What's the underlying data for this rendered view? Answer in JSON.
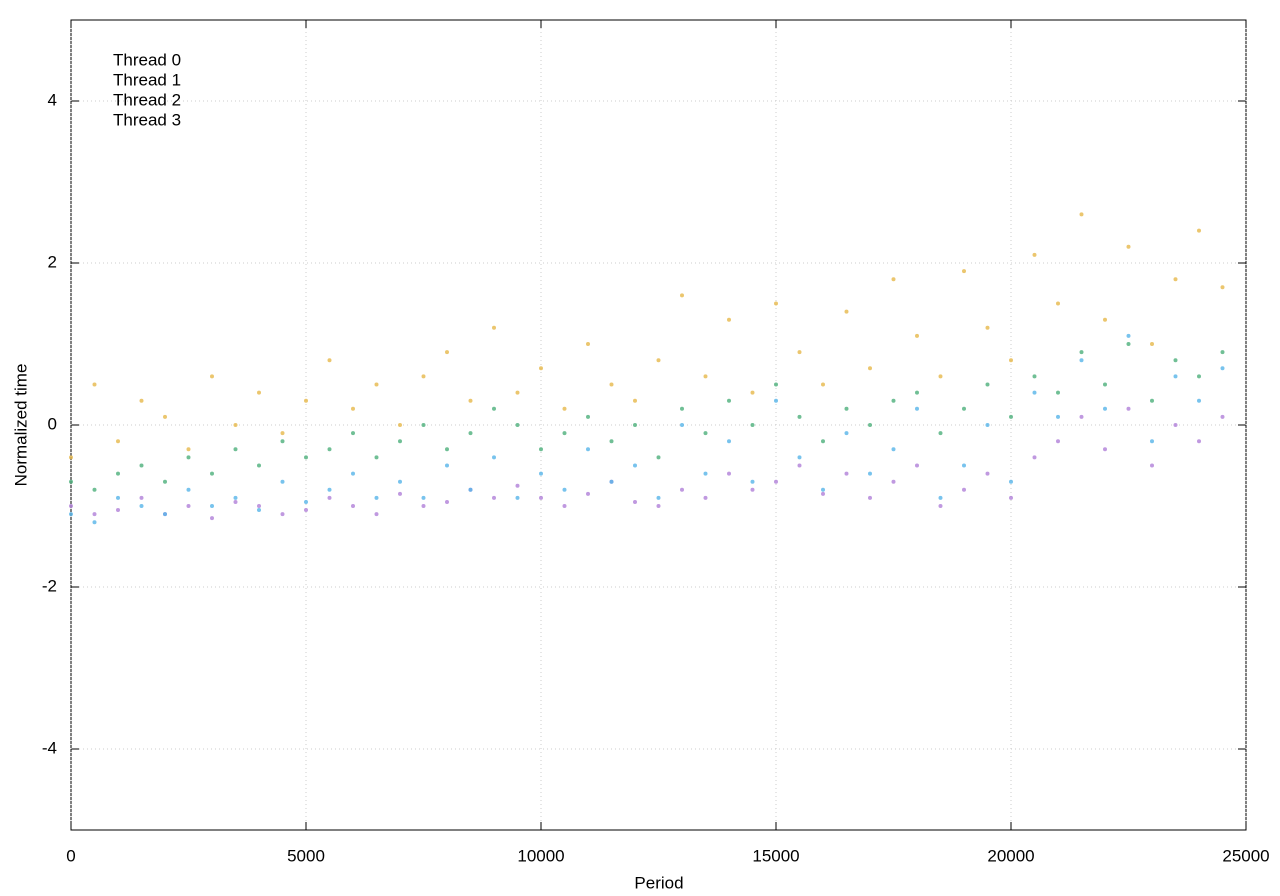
{
  "chart_data": {
    "type": "scatter",
    "xlabel": "Period",
    "ylabel": "Normalized time",
    "xlim": [
      0,
      25000
    ],
    "ylim": [
      -5,
      5
    ],
    "xticks": [
      0,
      5000,
      10000,
      15000,
      20000,
      25000
    ],
    "yticks": [
      -4,
      -2,
      0,
      2,
      4
    ],
    "grid": true,
    "legend": "top-left",
    "x": [
      0,
      500,
      1000,
      1500,
      2000,
      2500,
      3000,
      3500,
      4000,
      4500,
      5000,
      5500,
      6000,
      6500,
      7000,
      7500,
      8000,
      8500,
      9000,
      9500,
      10000,
      10500,
      11000,
      11500,
      12000,
      12500,
      13000,
      13500,
      14000,
      14500,
      15000,
      15500,
      16000,
      16500,
      17000,
      17500,
      18000,
      18500,
      19000,
      19500,
      20000,
      20500,
      21000,
      21500,
      22000,
      22500,
      23000,
      23500,
      24000,
      24500
    ],
    "series": [
      {
        "name": "Thread 0",
        "color": "#b07fd8",
        "values": [
          -1.0,
          -1.1,
          -1.05,
          -0.9,
          -1.1,
          -1.0,
          -1.15,
          -0.95,
          -1.0,
          -1.1,
          -1.05,
          -0.9,
          -1.0,
          -1.1,
          -0.85,
          -1.0,
          -0.95,
          -0.8,
          -0.9,
          -0.75,
          -0.9,
          -1.0,
          -0.85,
          -0.7,
          -0.95,
          -1.0,
          -0.8,
          -0.9,
          -0.6,
          -0.8,
          -0.7,
          -0.5,
          -0.85,
          -0.6,
          -0.9,
          -0.7,
          -0.5,
          -1.0,
          -0.8,
          -0.6,
          -0.9,
          -0.4,
          -0.2,
          0.1,
          -0.3,
          0.2,
          -0.5,
          0.0,
          -0.2,
          0.1
        ]
      },
      {
        "name": "Thread 1",
        "color": "#4caf7a",
        "values": [
          -0.7,
          -0.8,
          -0.6,
          -0.5,
          -0.7,
          -0.4,
          -0.6,
          -0.3,
          -0.5,
          -0.2,
          -0.4,
          -0.3,
          -0.1,
          -0.4,
          -0.2,
          0.0,
          -0.3,
          -0.1,
          0.2,
          0.0,
          -0.3,
          -0.1,
          0.1,
          -0.2,
          0.0,
          -0.4,
          0.2,
          -0.1,
          0.3,
          0.0,
          0.5,
          0.1,
          -0.2,
          0.2,
          0.0,
          0.3,
          0.4,
          -0.1,
          0.2,
          0.5,
          0.1,
          0.6,
          0.4,
          0.9,
          0.5,
          1.0,
          0.3,
          0.8,
          0.6,
          0.9
        ]
      },
      {
        "name": "Thread 2",
        "color": "#56b4e9",
        "values": [
          -1.1,
          -1.2,
          -0.9,
          -1.0,
          -1.1,
          -0.8,
          -1.0,
          -0.9,
          -1.05,
          -0.7,
          -0.95,
          -0.8,
          -0.6,
          -0.9,
          -0.7,
          -0.9,
          -0.5,
          -0.8,
          -0.4,
          -0.9,
          -0.6,
          -0.8,
          -0.3,
          -0.7,
          -0.5,
          -0.9,
          0.0,
          -0.6,
          -0.2,
          -0.7,
          0.3,
          -0.4,
          -0.8,
          -0.1,
          -0.6,
          -0.3,
          0.2,
          -0.9,
          -0.5,
          0.0,
          -0.7,
          0.4,
          0.1,
          0.8,
          0.2,
          1.1,
          -0.2,
          0.6,
          0.3,
          0.7
        ]
      },
      {
        "name": "Thread 3",
        "color": "#e6b84a",
        "values": [
          -0.4,
          0.5,
          -0.2,
          0.3,
          0.1,
          -0.3,
          0.6,
          0.0,
          0.4,
          -0.1,
          0.3,
          0.8,
          0.2,
          0.5,
          0.0,
          0.6,
          0.9,
          0.3,
          1.2,
          0.4,
          0.7,
          0.2,
          1.0,
          0.5,
          0.3,
          0.8,
          1.6,
          0.6,
          1.3,
          0.4,
          1.5,
          0.9,
          0.5,
          1.4,
          0.7,
          1.8,
          1.1,
          0.6,
          1.9,
          1.2,
          0.8,
          2.1,
          1.5,
          2.6,
          1.3,
          2.2,
          1.0,
          1.8,
          2.4,
          1.7
        ]
      }
    ]
  }
}
